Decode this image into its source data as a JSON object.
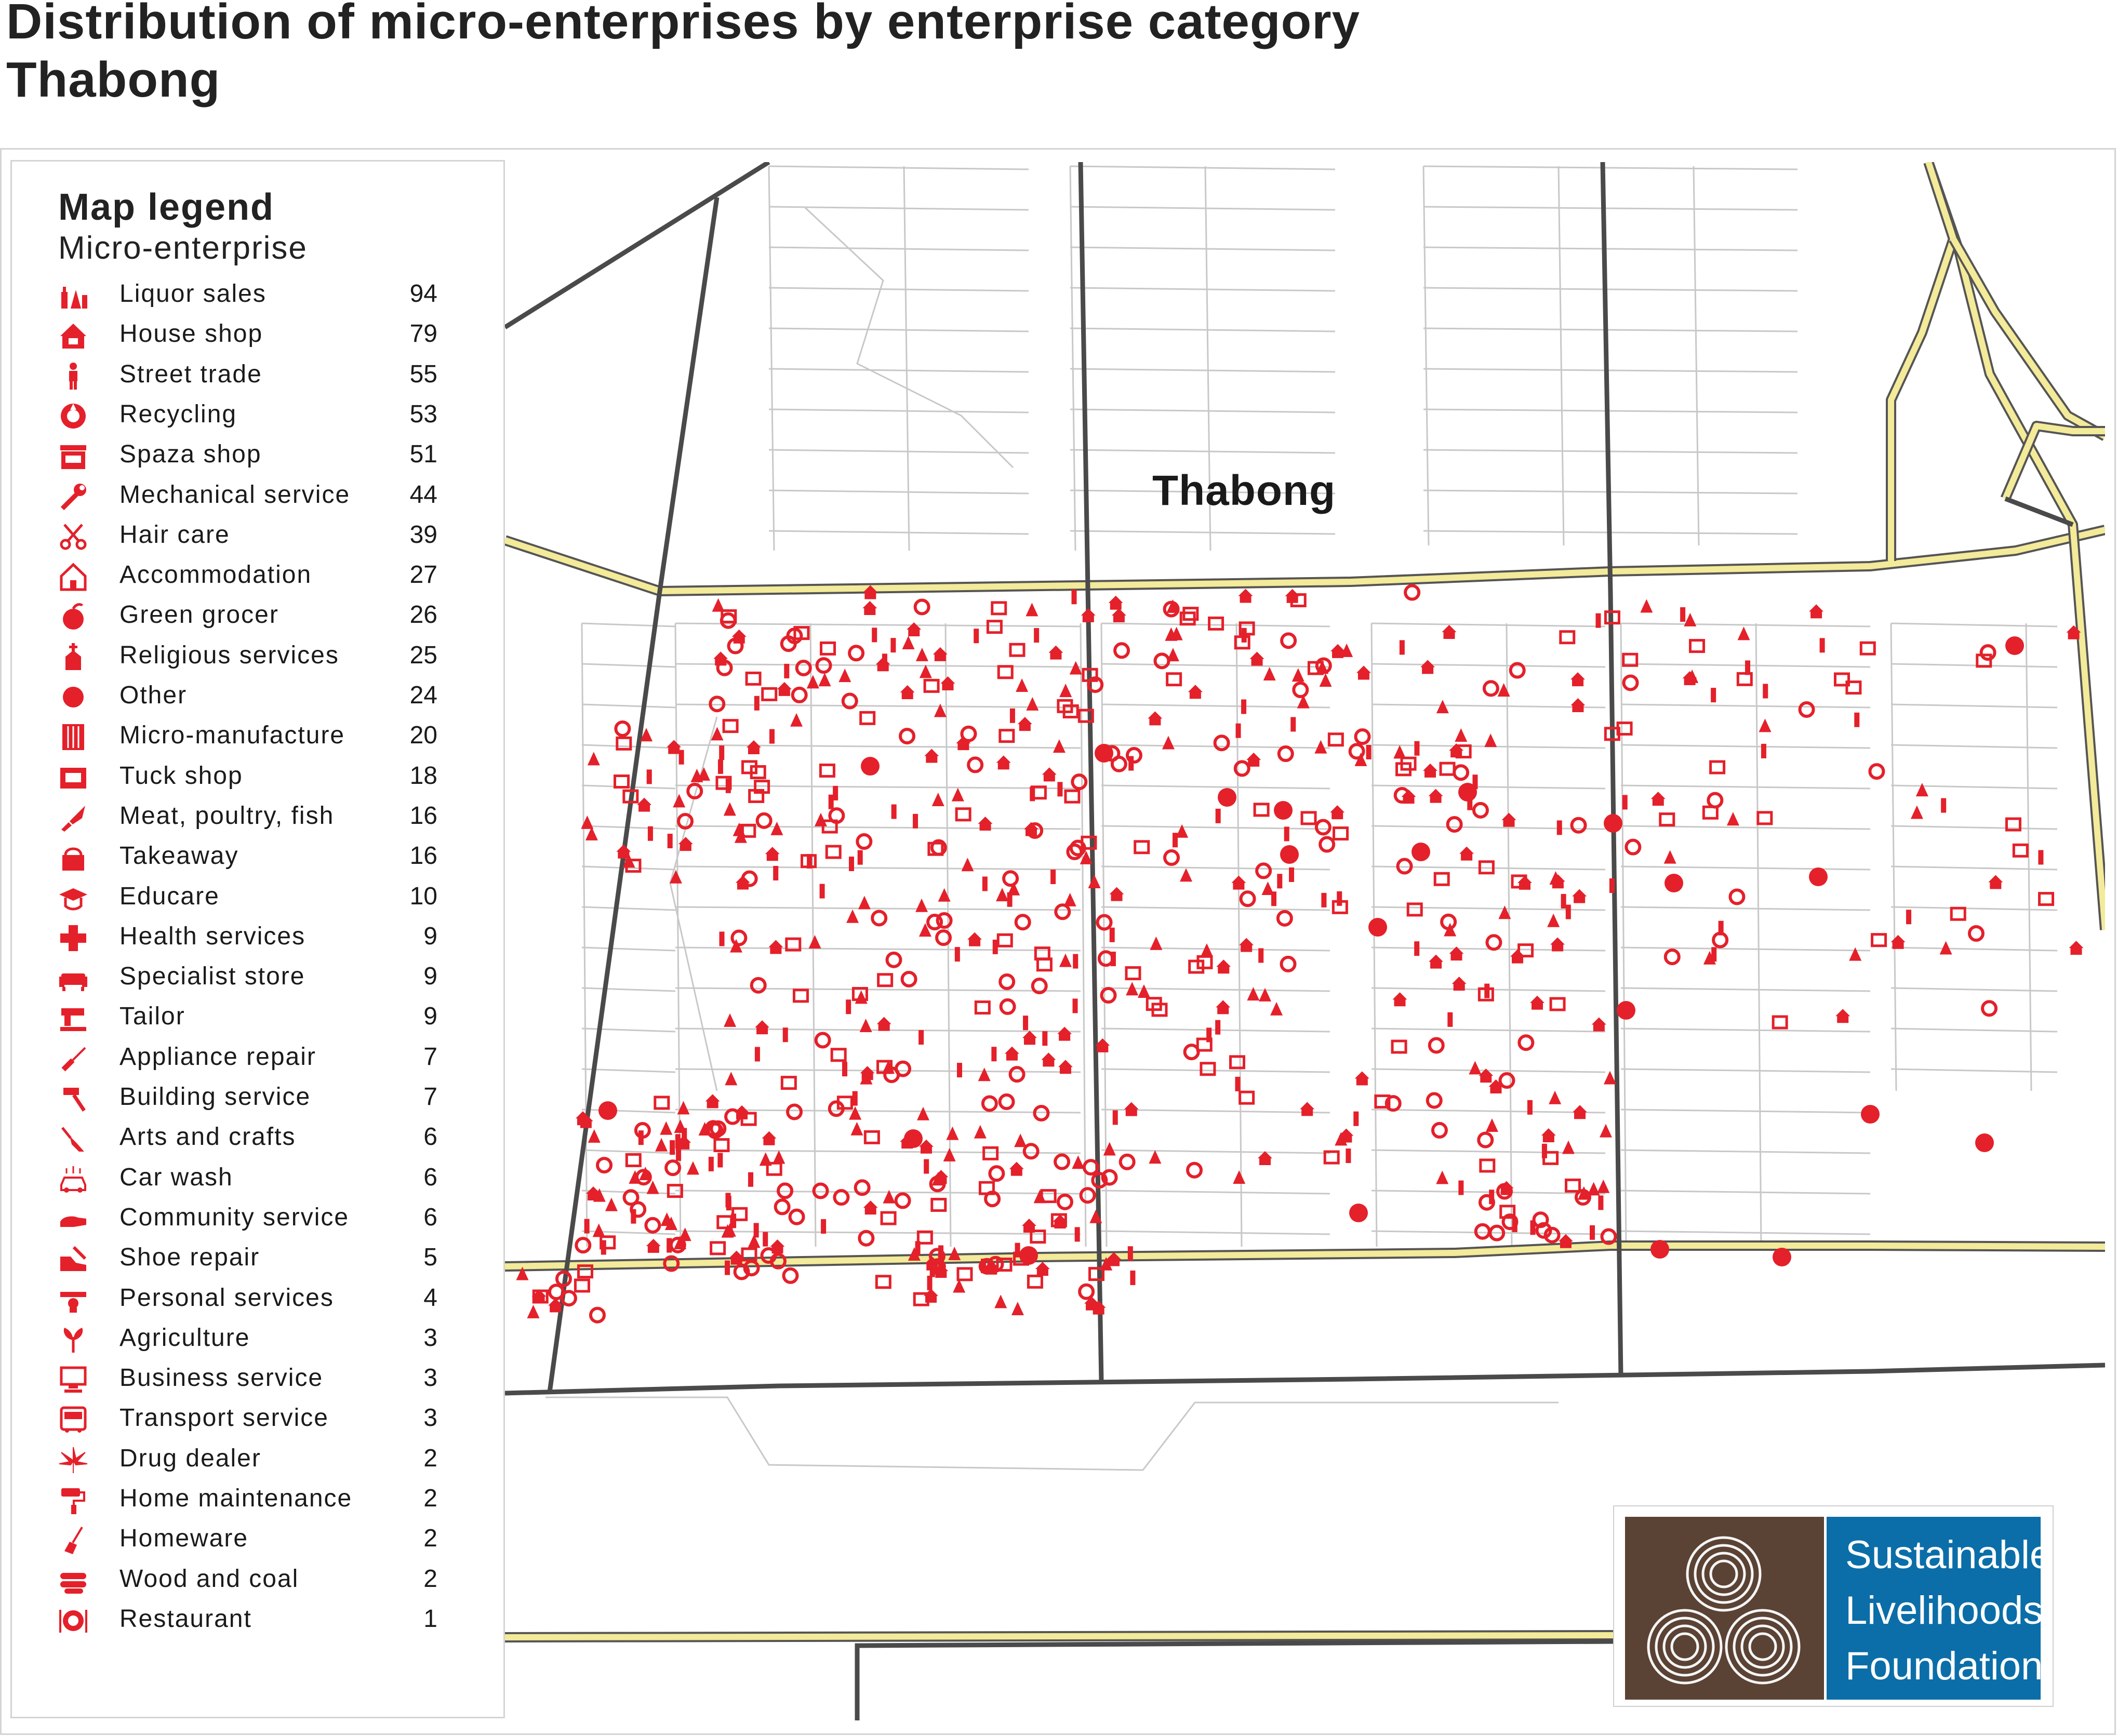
{
  "title": {
    "line1": "Distribution of micro-enterprises by enterprise category",
    "line2": "Thabong"
  },
  "legend": {
    "title": "Map legend",
    "subtitle": "Micro-enterprise",
    "items": [
      {
        "label": "Liquor sales",
        "count": "94",
        "icon": "liquor-bottles-icon"
      },
      {
        "label": "House shop",
        "count": "79",
        "icon": "house-shop-icon"
      },
      {
        "label": "Street trade",
        "count": "55",
        "icon": "street-trader-icon"
      },
      {
        "label": "Recycling",
        "count": "53",
        "icon": "recycling-icon"
      },
      {
        "label": "Spaza shop",
        "count": "51",
        "icon": "spaza-shop-icon"
      },
      {
        "label": "Mechanical service",
        "count": "44",
        "icon": "wrench-icon"
      },
      {
        "label": "Hair care",
        "count": "39",
        "icon": "scissors-comb-icon"
      },
      {
        "label": "Accommodation",
        "count": "27",
        "icon": "house-outline-icon"
      },
      {
        "label": "Green grocer",
        "count": "26",
        "icon": "fruit-icon"
      },
      {
        "label": "Religious services",
        "count": "25",
        "icon": "church-icon"
      },
      {
        "label": "Other",
        "count": "24",
        "icon": "dot-icon"
      },
      {
        "label": "Micro-manufacture",
        "count": "20",
        "icon": "manufacture-grid-icon"
      },
      {
        "label": "Tuck shop",
        "count": "18",
        "icon": "tuck-shop-icon"
      },
      {
        "label": "Meat, poultry, fish",
        "count": "16",
        "icon": "knife-icon"
      },
      {
        "label": "Takeaway",
        "count": "16",
        "icon": "takeaway-icon"
      },
      {
        "label": "Educare",
        "count": "10",
        "icon": "graduation-cap-icon"
      },
      {
        "label": "Health services",
        "count": "9",
        "icon": "health-cross-icon"
      },
      {
        "label": "Specialist store",
        "count": "9",
        "icon": "sofa-icon"
      },
      {
        "label": "Tailor",
        "count": "9",
        "icon": "sewing-machine-icon"
      },
      {
        "label": "Appliance repair",
        "count": "7",
        "icon": "screwdriver-icon"
      },
      {
        "label": "Building service",
        "count": "7",
        "icon": "hammer-icon"
      },
      {
        "label": "Arts and crafts",
        "count": "6",
        "icon": "paintbrush-icon"
      },
      {
        "label": "Car wash",
        "count": "6",
        "icon": "car-wash-icon"
      },
      {
        "label": "Community service",
        "count": "6",
        "icon": "community-hands-icon"
      },
      {
        "label": "Shoe repair",
        "count": "5",
        "icon": "shoe-icon"
      },
      {
        "label": "Personal services",
        "count": "4",
        "icon": "personal-service-icon"
      },
      {
        "label": "Agriculture",
        "count": "3",
        "icon": "plant-icon"
      },
      {
        "label": "Business service",
        "count": "3",
        "icon": "computer-icon"
      },
      {
        "label": "Transport service",
        "count": "3",
        "icon": "bus-icon"
      },
      {
        "label": "Drug dealer",
        "count": "2",
        "icon": "cannabis-leaf-icon"
      },
      {
        "label": "Home maintenance",
        "count": "2",
        "icon": "paint-roller-icon"
      },
      {
        "label": "Homeware",
        "count": "2",
        "icon": "broom-icon"
      },
      {
        "label": "Wood and coal",
        "count": "2",
        "icon": "firewood-icon"
      },
      {
        "label": "Restaurant",
        "count": "1",
        "icon": "plate-cutlery-icon"
      }
    ]
  },
  "map": {
    "place_label": "Thabong",
    "marker_color": "#e4202a",
    "major_road_color": "#f3ea9a",
    "street_color": "#4a4a4a",
    "minor_street_color": "#c8c8c8"
  },
  "logo": {
    "line1": "Sustainable",
    "line2": "Livelihoods",
    "line3": "Foundation",
    "mark_color": "#5a4235",
    "text_bg_color": "#0b6ea8"
  }
}
